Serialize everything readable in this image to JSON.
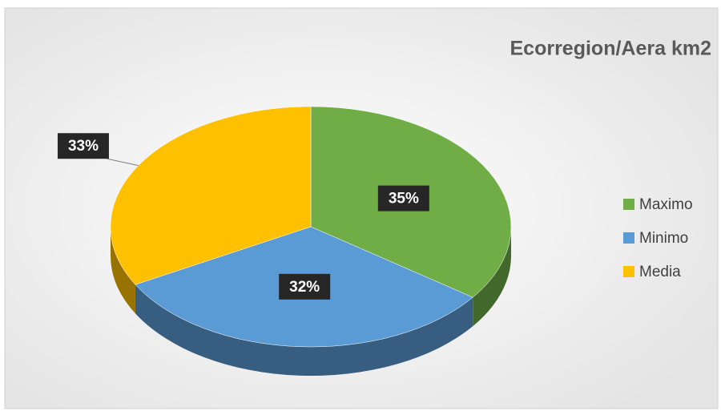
{
  "chart_data": {
    "type": "pie",
    "title": "Ecorregion/Aera km2",
    "categories": [
      "Maximo",
      "Minimo",
      "Media"
    ],
    "values": [
      35,
      32,
      33
    ],
    "value_labels": [
      "35%",
      "32%",
      "33%"
    ],
    "colors": [
      "#70ad47",
      "#5b9bd5",
      "#ffc000"
    ],
    "legend": "right"
  }
}
